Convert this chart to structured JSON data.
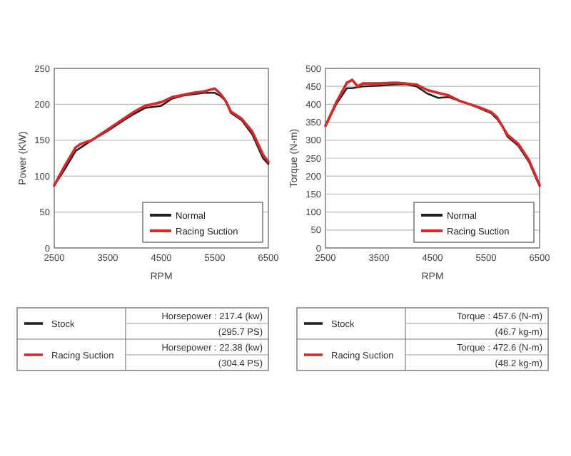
{
  "chart_data": [
    {
      "type": "line",
      "xlabel": "RPM",
      "ylabel": "Power (KW)",
      "xlim": [
        2500,
        6500
      ],
      "xticks": [
        2500,
        3500,
        4500,
        5500,
        6500
      ],
      "ylim": [
        0,
        250
      ],
      "yticks": [
        0,
        50,
        100,
        150,
        200,
        250
      ],
      "grid": "y",
      "legend": "bottom right",
      "marker": "none",
      "line_style": "solid",
      "series": [
        {
          "name": "Normal",
          "color": "#222222",
          "x": [
            2500,
            2700,
            2900,
            3000,
            3200,
            3500,
            3800,
            4000,
            4200,
            4500,
            4700,
            4900,
            5100,
            5300,
            5500,
            5600,
            5700,
            5800,
            6000,
            6200,
            6400,
            6500
          ],
          "values": [
            87,
            110,
            135,
            140,
            150,
            163,
            178,
            187,
            195,
            198,
            208,
            212,
            214,
            216,
            216,
            212,
            205,
            188,
            178,
            158,
            125,
            117
          ]
        },
        {
          "name": "Racing Suction",
          "color": "#d42a2a",
          "x": [
            2500,
            2700,
            2900,
            3000,
            3200,
            3500,
            3800,
            4000,
            4200,
            4500,
            4700,
            4900,
            5100,
            5300,
            5500,
            5600,
            5700,
            5800,
            6000,
            6200,
            6400,
            6500
          ],
          "values": [
            87,
            115,
            140,
            145,
            150,
            165,
            180,
            190,
            198,
            203,
            210,
            213,
            216,
            218,
            222,
            215,
            205,
            190,
            180,
            162,
            130,
            120
          ]
        }
      ]
    },
    {
      "type": "line",
      "xlabel": "RPM",
      "ylabel": "Torque (N-m)",
      "xlim": [
        2500,
        6500
      ],
      "xticks": [
        2500,
        3500,
        4500,
        5500,
        6500
      ],
      "ylim": [
        0,
        500
      ],
      "yticks": [
        0,
        50,
        100,
        150,
        200,
        250,
        300,
        350,
        400,
        450,
        500
      ],
      "grid": "y",
      "legend": "bottom right",
      "marker": "none",
      "line_style": "solid",
      "series": [
        {
          "name": "Normal",
          "color": "#222222",
          "x": [
            2500,
            2700,
            2900,
            3000,
            3200,
            3500,
            3800,
            4000,
            4200,
            4400,
            4600,
            4800,
            5000,
            5200,
            5400,
            5600,
            5700,
            5800,
            5900,
            6100,
            6300,
            6500
          ],
          "values": [
            340,
            400,
            445,
            445,
            450,
            452,
            455,
            456,
            450,
            430,
            418,
            420,
            410,
            400,
            388,
            375,
            360,
            340,
            310,
            285,
            240,
            172
          ]
        },
        {
          "name": "Racing Suction",
          "color": "#d42a2a",
          "x": [
            2500,
            2700,
            2900,
            3000,
            3100,
            3200,
            3500,
            3800,
            4000,
            4200,
            4400,
            4600,
            4800,
            5000,
            5200,
            5400,
            5600,
            5700,
            5800,
            5900,
            6100,
            6300,
            6500
          ],
          "values": [
            340,
            405,
            460,
            468,
            450,
            458,
            458,
            460,
            458,
            455,
            440,
            432,
            425,
            410,
            400,
            390,
            378,
            365,
            340,
            315,
            290,
            245,
            175
          ]
        }
      ]
    },
    {
      "type": "other",
      "annotations": [
        "Stock",
        "Horsepower : 217.4 (kw)",
        "(295.7 PS)",
        "Racing Suction",
        "Horsepower : 22.38 (kw)",
        "(304.4 PS)",
        "Stock",
        "Torque : 457.6 (N-m)",
        "(46.7 kg-m)",
        "Racing Suction",
        "Torque : 472.6 (N-m)",
        "(48.2 kg-m)"
      ]
    }
  ]
}
